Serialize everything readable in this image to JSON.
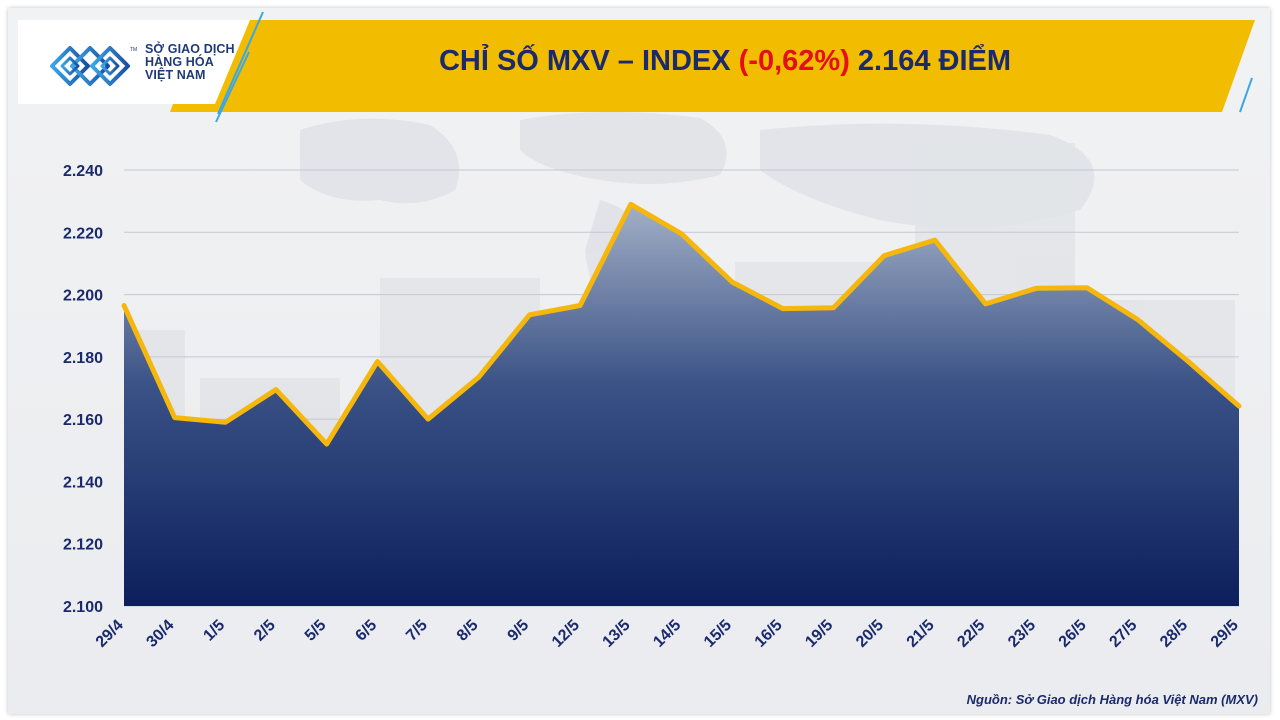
{
  "header": {
    "logo": {
      "line1": "SỞ GIAO DỊCH",
      "line2": "HÀNG HÓA",
      "line3": "VIỆT NAM",
      "tm": "TM"
    },
    "title": {
      "prefix": "CHỈ SỐ MXV – INDEX ",
      "change": "(-0,62%)",
      "suffix": " 2.164 ĐIỂM"
    }
  },
  "footer": {
    "source": "Nguồn: Sở Giao dịch Hàng hóa Việt Nam (MXV)"
  },
  "colors": {
    "banner": "#f2bc00",
    "line": "#f5b70c",
    "area_top": "#a2afc6",
    "area_bottom": "#0c1f5c",
    "axis_text": "#1a2a6c",
    "negative": "#e3101b"
  },
  "chart_data": {
    "type": "area",
    "title": "CHỈ SỐ MXV – INDEX (-0,62%) 2.164 ĐIỂM",
    "xlabel": "",
    "ylabel": "",
    "ylim": [
      2100,
      2240
    ],
    "grid": true,
    "legend": "none",
    "y_ticks": [
      "2.100",
      "2.120",
      "2.140",
      "2.160",
      "2.180",
      "2.200",
      "2.220",
      "2.240"
    ],
    "y_tick_values": [
      2100,
      2120,
      2140,
      2160,
      2180,
      2200,
      2220,
      2240
    ],
    "categories": [
      "29/4",
      "30/4",
      "1/5",
      "2/5",
      "5/5",
      "6/5",
      "7/5",
      "8/5",
      "9/5",
      "12/5",
      "13/5",
      "14/5",
      "15/5",
      "16/5",
      "19/5",
      "20/5",
      "21/5",
      "22/5",
      "23/5",
      "26/5",
      "27/5",
      "28/5",
      "29/5"
    ],
    "series": [
      {
        "values": [
          2196.5,
          2160.5,
          2159,
          2169.5,
          2152,
          2178.5,
          2160,
          2173.5,
          2193.5,
          2196.5,
          2229,
          2219.5,
          2204,
          2195.5,
          2195.8,
          2212.5,
          2217.5,
          2197,
          2202,
          2202.2,
          2192,
          2178.5,
          2164.2
        ]
      }
    ]
  }
}
